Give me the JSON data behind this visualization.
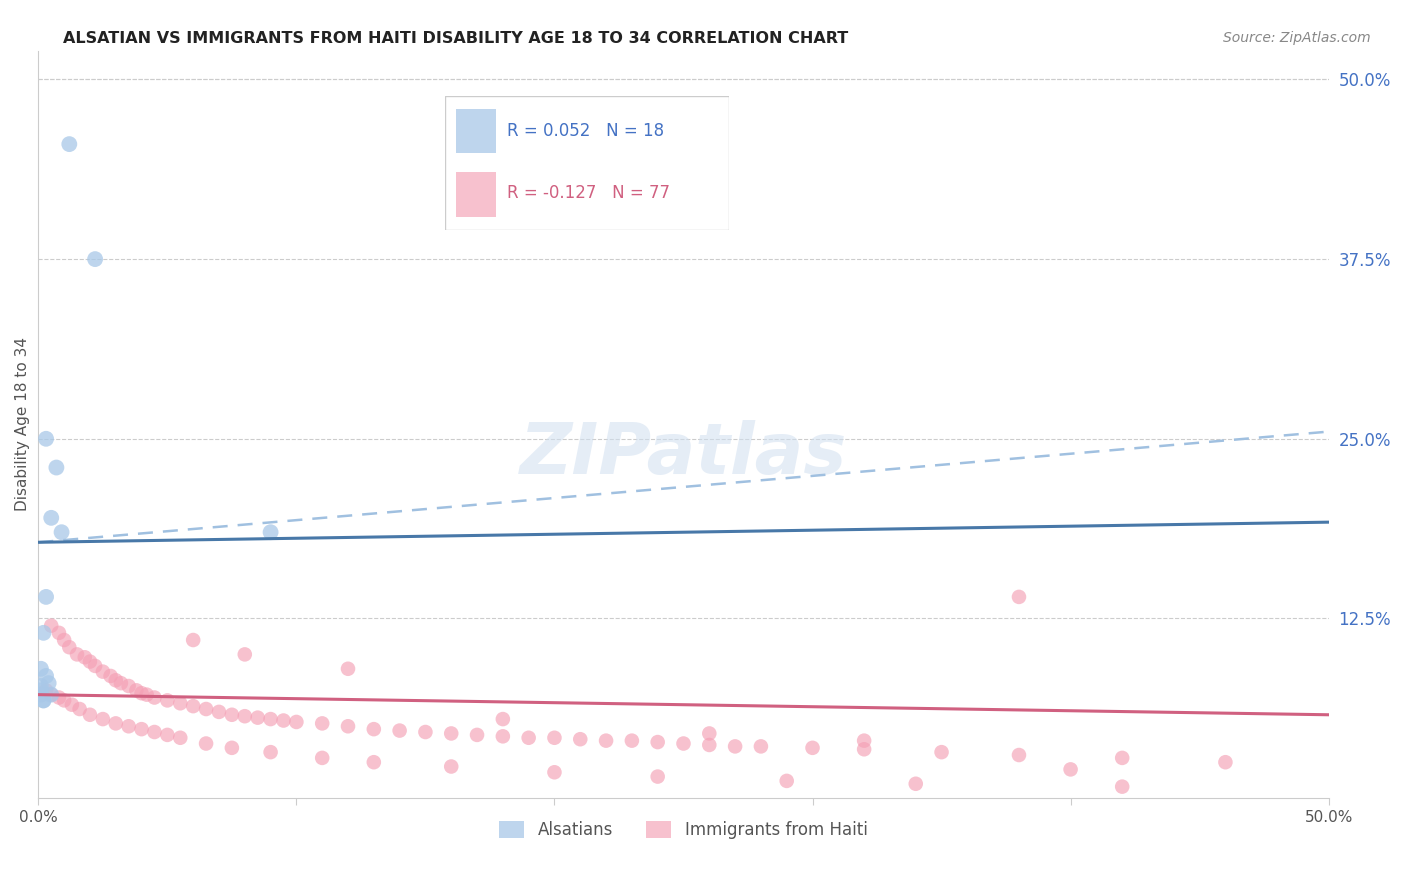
{
  "title": "ALSATIAN VS IMMIGRANTS FROM HAITI DISABILITY AGE 18 TO 34 CORRELATION CHART",
  "source": "Source: ZipAtlas.com",
  "ylabel": "Disability Age 18 to 34",
  "right_yticks": [
    "50.0%",
    "37.5%",
    "25.0%",
    "12.5%"
  ],
  "right_ytick_vals": [
    0.5,
    0.375,
    0.25,
    0.125
  ],
  "xlim": [
    0.0,
    0.5
  ],
  "ylim": [
    0.0,
    0.52
  ],
  "legend_R1": "R = 0.052",
  "legend_N1": "N = 18",
  "legend_R2": "R = -0.127",
  "legend_N2": "N = 77",
  "blue_color": "#a8c8e8",
  "pink_color": "#f4a0b5",
  "blue_line_color": "#4878a8",
  "pink_line_color": "#d06080",
  "dashed_line_color": "#a0c0e0",
  "axis_color": "#4472c4",
  "text_color": "#555555",
  "grid_color": "#cccccc",
  "alsatian_x": [
    0.012,
    0.022,
    0.003,
    0.007,
    0.005,
    0.009,
    0.003,
    0.002,
    0.001,
    0.003,
    0.004,
    0.001,
    0.001,
    0.001,
    0.002,
    0.09,
    0.002,
    0.005
  ],
  "alsatian_y": [
    0.455,
    0.375,
    0.25,
    0.23,
    0.195,
    0.185,
    0.14,
    0.115,
    0.09,
    0.085,
    0.08,
    0.078,
    0.075,
    0.072,
    0.068,
    0.185,
    0.068,
    0.072
  ],
  "haiti_x": [
    0.005,
    0.008,
    0.01,
    0.012,
    0.015,
    0.018,
    0.02,
    0.022,
    0.025,
    0.028,
    0.03,
    0.032,
    0.035,
    0.038,
    0.04,
    0.042,
    0.045,
    0.05,
    0.055,
    0.06,
    0.065,
    0.07,
    0.075,
    0.08,
    0.085,
    0.09,
    0.095,
    0.1,
    0.11,
    0.12,
    0.13,
    0.14,
    0.15,
    0.16,
    0.17,
    0.18,
    0.19,
    0.2,
    0.21,
    0.22,
    0.23,
    0.24,
    0.25,
    0.26,
    0.27,
    0.28,
    0.3,
    0.32,
    0.35,
    0.38,
    0.42,
    0.46,
    0.003,
    0.005,
    0.008,
    0.01,
    0.013,
    0.016,
    0.02,
    0.025,
    0.03,
    0.035,
    0.04,
    0.045,
    0.05,
    0.055,
    0.065,
    0.075,
    0.09,
    0.11,
    0.13,
    0.16,
    0.2,
    0.24,
    0.29,
    0.34,
    0.42
  ],
  "haiti_y": [
    0.12,
    0.115,
    0.11,
    0.105,
    0.1,
    0.098,
    0.095,
    0.092,
    0.088,
    0.085,
    0.082,
    0.08,
    0.078,
    0.075,
    0.073,
    0.072,
    0.07,
    0.068,
    0.066,
    0.064,
    0.062,
    0.06,
    0.058,
    0.057,
    0.056,
    0.055,
    0.054,
    0.053,
    0.052,
    0.05,
    0.048,
    0.047,
    0.046,
    0.045,
    0.044,
    0.043,
    0.042,
    0.042,
    0.041,
    0.04,
    0.04,
    0.039,
    0.038,
    0.037,
    0.036,
    0.036,
    0.035,
    0.034,
    0.032,
    0.03,
    0.028,
    0.025,
    0.075,
    0.072,
    0.07,
    0.068,
    0.065,
    0.062,
    0.058,
    0.055,
    0.052,
    0.05,
    0.048,
    0.046,
    0.044,
    0.042,
    0.038,
    0.035,
    0.032,
    0.028,
    0.025,
    0.022,
    0.018,
    0.015,
    0.012,
    0.01,
    0.008
  ],
  "haiti_extra_x": [
    0.38,
    0.06,
    0.08,
    0.12,
    0.18,
    0.26,
    0.32,
    0.4
  ],
  "haiti_extra_y": [
    0.14,
    0.11,
    0.1,
    0.09,
    0.055,
    0.045,
    0.04,
    0.02
  ],
  "blue_trend_x": [
    0.0,
    0.5
  ],
  "blue_trend_y": [
    0.178,
    0.192
  ],
  "pink_trend_x": [
    0.0,
    0.5
  ],
  "pink_trend_y": [
    0.072,
    0.058
  ],
  "dashed_trend_x": [
    0.0,
    0.5
  ],
  "dashed_trend_y": [
    0.178,
    0.255
  ]
}
